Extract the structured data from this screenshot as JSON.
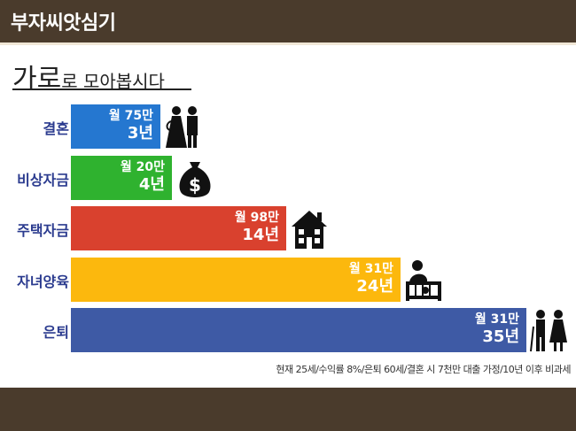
{
  "header": {
    "brand": "부자씨앗심기"
  },
  "title": {
    "main_big": "가로",
    "main_rest": "로 모아봅시다"
  },
  "colors": {
    "header_bg": "#4a3b2c",
    "label": "#2b3b8f",
    "marriage": "#2577d0",
    "living": "#2fb22f",
    "housing": "#d9412e",
    "childcare": "#fcb80d",
    "retirement": "#3e5aa5"
  },
  "chart_data": {
    "type": "bar",
    "orientation": "horizontal",
    "categories": [
      "결혼",
      "비상자금",
      "주택자금",
      "자녀양육",
      "은퇴"
    ],
    "monthly_labels": [
      "월 75만",
      "월 20만",
      "월 98만",
      "월 31만",
      "월 31만"
    ],
    "year_labels": [
      "3년",
      "4년",
      "14년",
      "24년",
      "35년"
    ],
    "values": [
      3,
      4,
      14,
      24,
      35
    ],
    "icons": [
      "wedding-couple-icon",
      "money-bag-icon",
      "house-icon",
      "crib-baby-icon",
      "elderly-couple-icon"
    ],
    "bar_colors": [
      "#2577d0",
      "#2fb22f",
      "#d9412e",
      "#fcb80d",
      "#3e5aa5"
    ],
    "xlim": [
      0,
      35
    ]
  },
  "footnote": "현재 25세/수익률 8%/은퇴 60세/결혼 시 7천만 대출 가정/10년 이후 비과세"
}
